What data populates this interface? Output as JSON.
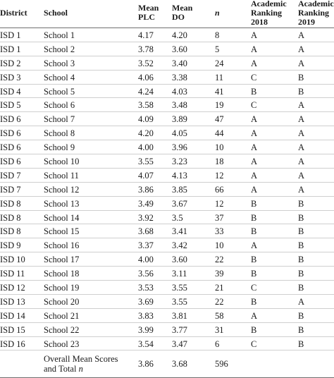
{
  "headers": {
    "district": "District",
    "school": "School",
    "mean_plc": [
      "Mean",
      "PLC"
    ],
    "mean_do": [
      "Mean",
      "DO"
    ],
    "n": "n",
    "ranking_2018": [
      "Academic",
      "Ranking",
      "2018"
    ],
    "ranking_2019": [
      "Academic",
      "Ranking",
      "2019"
    ]
  },
  "rows": [
    {
      "district": "ISD 1",
      "school": "School 1",
      "plc": "4.17",
      "do": "4.20",
      "n": "8",
      "r2018": "A",
      "r2019": "A"
    },
    {
      "district": "ISD 1",
      "school": "School 2",
      "plc": "3.78",
      "do": "3.60",
      "n": "5",
      "r2018": "A",
      "r2019": "A"
    },
    {
      "district": "ISD 2",
      "school": "School 3",
      "plc": "3.52",
      "do": "3.40",
      "n": "24",
      "r2018": "A",
      "r2019": "A"
    },
    {
      "district": "ISD 3",
      "school": "School 4",
      "plc": "4.06",
      "do": "3.38",
      "n": "11",
      "r2018": "C",
      "r2019": "B"
    },
    {
      "district": "ISD 4",
      "school": "School 5",
      "plc": "4.24",
      "do": "4.03",
      "n": "41",
      "r2018": "B",
      "r2019": "B"
    },
    {
      "district": "ISD 5",
      "school": "School 6",
      "plc": "3.58",
      "do": "3.48",
      "n": "19",
      "r2018": "C",
      "r2019": "A"
    },
    {
      "district": "ISD 6",
      "school": "School 7",
      "plc": "4.09",
      "do": "3.89",
      "n": "47",
      "r2018": "A",
      "r2019": "A"
    },
    {
      "district": "ISD 6",
      "school": "School 8",
      "plc": "4.20",
      "do": "4.05",
      "n": "44",
      "r2018": "A",
      "r2019": "A"
    },
    {
      "district": "ISD 6",
      "school": "School 9",
      "plc": "4.00",
      "do": "3.96",
      "n": "10",
      "r2018": "A",
      "r2019": "A"
    },
    {
      "district": "ISD 6",
      "school": "School 10",
      "plc": "3.55",
      "do": "3.23",
      "n": "18",
      "r2018": "A",
      "r2019": "A"
    },
    {
      "district": "ISD 7",
      "school": "School 11",
      "plc": "4.07",
      "do": "4.13",
      "n": "12",
      "r2018": "A",
      "r2019": "A"
    },
    {
      "district": "ISD 7",
      "school": "School 12",
      "plc": "3.86",
      "do": "3.85",
      "n": "66",
      "r2018": "A",
      "r2019": "A"
    },
    {
      "district": "ISD 8",
      "school": "School 13",
      "plc": "3.49",
      "do": "3.67",
      "n": "12",
      "r2018": "B",
      "r2019": "B"
    },
    {
      "district": "ISD 8",
      "school": "School 14",
      "plc": "3.92",
      "do": "3.5",
      "n": "37",
      "r2018": "B",
      "r2019": "B"
    },
    {
      "district": "ISD 8",
      "school": "School 15",
      "plc": "3.68",
      "do": "3.41",
      "n": "33",
      "r2018": "B",
      "r2019": "B"
    },
    {
      "district": "ISD 9",
      "school": "School 16",
      "plc": "3.37",
      "do": "3.42",
      "n": "10",
      "r2018": "A",
      "r2019": "B"
    },
    {
      "district": "ISD 10",
      "school": "School 17",
      "plc": "4.00",
      "do": "3.60",
      "n": "22",
      "r2018": "B",
      "r2019": "B"
    },
    {
      "district": "ISD 11",
      "school": "School 18",
      "plc": "3.56",
      "do": "3.11",
      "n": "39",
      "r2018": "B",
      "r2019": "B"
    },
    {
      "district": "ISD 12",
      "school": "School 19",
      "plc": "3.53",
      "do": "3.55",
      "n": "21",
      "r2018": "C",
      "r2019": "B"
    },
    {
      "district": "ISD 13",
      "school": "School 20",
      "plc": "3.69",
      "do": "3.55",
      "n": "22",
      "r2018": "B",
      "r2019": "A"
    },
    {
      "district": "ISD 14",
      "school": "School 21",
      "plc": "3.83",
      "do": "3.81",
      "n": "58",
      "r2018": "A",
      "r2019": "B"
    },
    {
      "district": "ISD 15",
      "school": "School 22",
      "plc": "3.99",
      "do": "3.77",
      "n": "31",
      "r2018": "B",
      "r2019": "B"
    },
    {
      "district": "ISD 16",
      "school": "School 23",
      "plc": "3.54",
      "do": "3.47",
      "n": "6",
      "r2018": "C",
      "r2019": "B"
    }
  ],
  "footer": {
    "label_line1": "Overall Mean Scores",
    "label_line2": "and Total",
    "label_n": "n",
    "plc": "3.86",
    "do": "3.68",
    "n": "596"
  }
}
